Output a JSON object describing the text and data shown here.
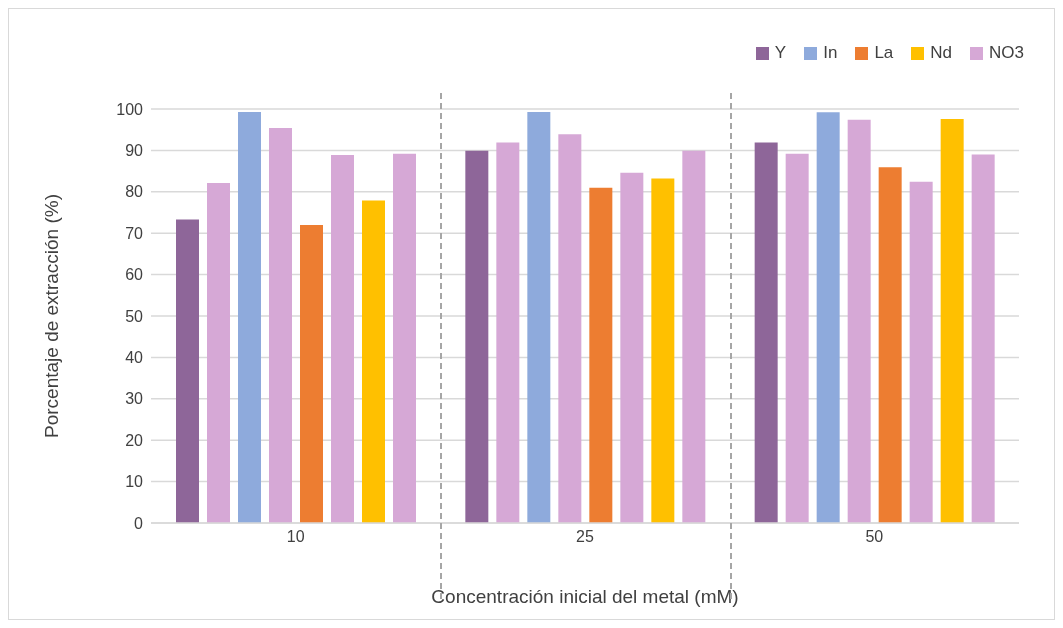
{
  "chart_data": {
    "type": "bar",
    "xlabel": "Concentración inicial del metal (mM)",
    "ylabel": "Porcentaje de extracción (%)",
    "categories": [
      "10",
      "25",
      "50"
    ],
    "series": [
      {
        "name": "Y",
        "color": "#8e6699",
        "values": [
          73.3,
          89.9,
          91.9
        ]
      },
      {
        "color": "#d6a8d6",
        "values": [
          82.1,
          91.9,
          89.2
        ]
      },
      {
        "name": "In",
        "color": "#8eaadc",
        "values": [
          99.3,
          99.3,
          99.2
        ]
      },
      {
        "color": "#d6a8d6",
        "values": [
          95.4,
          93.9,
          97.4
        ]
      },
      {
        "name": "La",
        "color": "#ed7d31",
        "values": [
          72.0,
          81.0,
          85.9
        ]
      },
      {
        "color": "#d6a8d6",
        "values": [
          88.9,
          84.6,
          82.4
        ]
      },
      {
        "name": "Nd",
        "color": "#ffc000",
        "values": [
          77.9,
          83.2,
          97.6
        ]
      },
      {
        "name": "NO3",
        "color": "#d6a8d6",
        "values": [
          89.2,
          89.9,
          89.0
        ]
      }
    ],
    "ylim": [
      0,
      100
    ],
    "yticks": [
      0,
      10,
      20,
      30,
      40,
      50,
      60,
      70,
      80,
      90,
      100
    ],
    "grid": "y",
    "legend": "top right"
  }
}
